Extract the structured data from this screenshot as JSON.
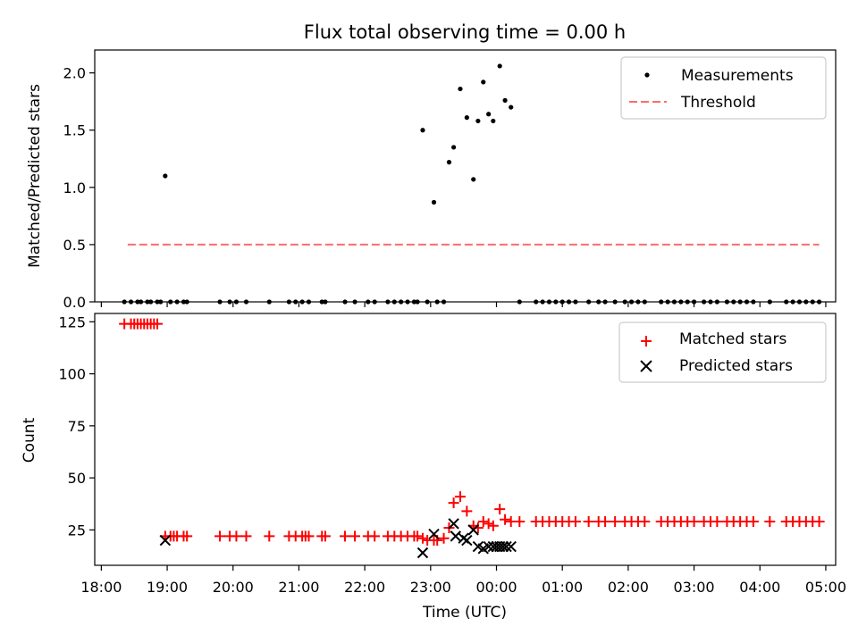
{
  "chart_data": [
    {
      "type": "scatter",
      "title": "Flux total observing time = 0.00 h",
      "xlabel": "",
      "ylabel": "Matched/Predicted stars",
      "xlim": [
        17.9,
        29.15
      ],
      "ylim": [
        0.0,
        2.2
      ],
      "yticks": [
        0.0,
        0.5,
        1.0,
        1.5,
        2.0
      ],
      "ytick_labels": [
        "0.0",
        "0.5",
        "1.0",
        "1.5",
        "2.0"
      ],
      "legend_position": "top-right",
      "legend": [
        "Measurements",
        "Threshold"
      ],
      "series": [
        {
          "name": "Measurements",
          "kind": "points",
          "color": "#000000",
          "x": [
            18.35,
            18.45,
            18.55,
            18.6,
            18.7,
            18.75,
            18.85,
            18.9,
            18.97,
            19.05,
            19.15,
            19.25,
            19.3,
            19.8,
            19.95,
            20.05,
            20.2,
            20.55,
            20.85,
            20.95,
            21.05,
            21.15,
            21.35,
            21.4,
            21.7,
            21.85,
            22.05,
            22.15,
            22.35,
            22.45,
            22.55,
            22.65,
            22.75,
            22.8,
            22.88,
            22.95,
            23.05,
            23.1,
            23.2,
            23.28,
            23.35,
            23.45,
            23.55,
            23.65,
            23.72,
            23.8,
            23.88,
            23.95,
            24.05,
            24.13,
            24.22,
            24.35,
            24.6,
            24.7,
            24.8,
            24.9,
            25.0,
            25.1,
            25.2,
            25.4,
            25.55,
            25.65,
            25.8,
            25.95,
            26.05,
            26.15,
            26.25,
            26.5,
            26.6,
            26.7,
            26.8,
            26.9,
            27.0,
            27.15,
            27.25,
            27.35,
            27.5,
            27.6,
            27.7,
            27.8,
            27.9,
            28.15,
            28.4,
            28.5,
            28.6,
            28.7,
            28.8,
            28.9
          ],
          "y": [
            0,
            0,
            0,
            0,
            0,
            0,
            0,
            0,
            1.1,
            0,
            0,
            0,
            0,
            0,
            0,
            0,
            0,
            0,
            0,
            0,
            0,
            0,
            0,
            0,
            0,
            0,
            0,
            0,
            0,
            0,
            0,
            0,
            0,
            0,
            1.5,
            0,
            0.87,
            0,
            0,
            1.22,
            1.35,
            1.86,
            1.61,
            1.07,
            1.58,
            1.92,
            1.64,
            1.58,
            2.06,
            1.76,
            1.7,
            0,
            0,
            0,
            0,
            0,
            0,
            0,
            0,
            0,
            0,
            0,
            0,
            0,
            0,
            0,
            0,
            0,
            0,
            0,
            0,
            0,
            0,
            0,
            0,
            0,
            0,
            0,
            0,
            0,
            0,
            0,
            0,
            0,
            0,
            0,
            0,
            0
          ]
        },
        {
          "name": "Threshold",
          "kind": "dashed-line",
          "color": "#ff6b6b",
          "x": [
            18.4,
            28.9
          ],
          "y": [
            0.5,
            0.5
          ]
        }
      ]
    },
    {
      "type": "scatter",
      "title": "",
      "xlabel": "Time (UTC)",
      "ylabel": "Count",
      "xlim": [
        17.9,
        29.15
      ],
      "ylim": [
        8,
        129
      ],
      "yticks": [
        25,
        50,
        75,
        100,
        125
      ],
      "ytick_labels": [
        "25",
        "50",
        "75",
        "100",
        "125"
      ],
      "xticks": [
        18,
        19,
        20,
        21,
        22,
        23,
        24,
        25,
        26,
        27,
        28,
        29
      ],
      "xtick_labels": [
        "18:00",
        "19:00",
        "20:00",
        "21:00",
        "22:00",
        "23:00",
        "00:00",
        "01:00",
        "02:00",
        "03:00",
        "04:00",
        "05:00"
      ],
      "legend_position": "top-right",
      "legend": [
        "Matched stars",
        "Predicted stars"
      ],
      "series": [
        {
          "name": "Matched stars",
          "kind": "plus",
          "color": "#ff0000",
          "x": [
            18.35,
            18.45,
            18.5,
            18.55,
            18.6,
            18.65,
            18.7,
            18.75,
            18.8,
            18.85,
            18.97,
            19.05,
            19.1,
            19.15,
            19.25,
            19.3,
            19.8,
            19.95,
            20.05,
            20.2,
            20.55,
            20.85,
            20.95,
            21.05,
            21.1,
            21.15,
            21.35,
            21.4,
            21.7,
            21.85,
            22.05,
            22.15,
            22.35,
            22.45,
            22.55,
            22.65,
            22.75,
            22.8,
            22.88,
            22.95,
            23.05,
            23.1,
            23.2,
            23.28,
            23.35,
            23.45,
            23.55,
            23.65,
            23.72,
            23.8,
            23.88,
            23.95,
            24.05,
            24.13,
            24.22,
            24.35,
            24.6,
            24.7,
            24.8,
            24.9,
            25.0,
            25.1,
            25.2,
            25.4,
            25.55,
            25.65,
            25.8,
            25.95,
            26.05,
            26.15,
            26.25,
            26.5,
            26.6,
            26.7,
            26.8,
            26.9,
            27.0,
            27.15,
            27.25,
            27.35,
            27.5,
            27.6,
            27.7,
            27.8,
            27.9,
            28.15,
            28.4,
            28.5,
            28.6,
            28.7,
            28.8,
            28.9
          ],
          "y": [
            124,
            124,
            124,
            124,
            124,
            124,
            124,
            124,
            124,
            124,
            22,
            22,
            22,
            22,
            22,
            22,
            22,
            22,
            22,
            22,
            22,
            22,
            22,
            22,
            22,
            22,
            22,
            22,
            22,
            22,
            22,
            22,
            22,
            22,
            22,
            22,
            22,
            22,
            21,
            20,
            20,
            20,
            21,
            26,
            38,
            41,
            34,
            27,
            26,
            29,
            28,
            27,
            35,
            30,
            29,
            29,
            29,
            29,
            29,
            29,
            29,
            29,
            29,
            29,
            29,
            29,
            29,
            29,
            29,
            29,
            29,
            29,
            29,
            29,
            29,
            29,
            29,
            29,
            29,
            29,
            29,
            29,
            29,
            29,
            29,
            29,
            29,
            29,
            29,
            29,
            29,
            29
          ]
        },
        {
          "name": "Predicted stars",
          "kind": "x",
          "color": "#000000",
          "x": [
            18.97,
            22.88,
            23.05,
            23.35,
            23.38,
            23.5,
            23.55,
            23.65,
            23.72,
            23.8,
            23.88,
            23.95,
            24.0,
            24.05,
            24.1,
            24.15,
            24.22
          ],
          "y": [
            20,
            14,
            23,
            28,
            22,
            21,
            20,
            25,
            17,
            16,
            17,
            17,
            17,
            17,
            17,
            17,
            17
          ]
        }
      ]
    }
  ]
}
